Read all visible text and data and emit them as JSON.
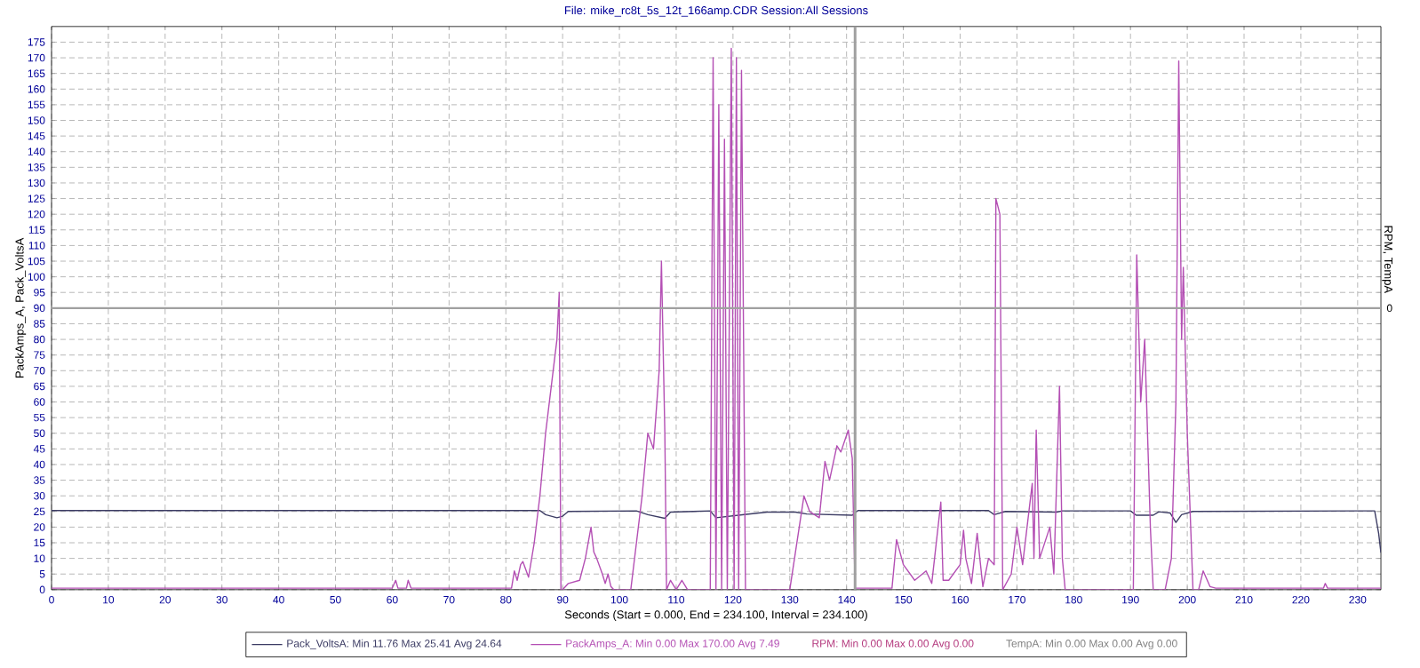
{
  "chart_data": {
    "type": "line",
    "title": "File: mike_rc8t_5s_12t_166amp.CDR   Session:All Sessions",
    "xlabel": "Seconds (Start = 0.000,  End = 234.100,  Interval =  234.100)",
    "ylabel": "PackAmps_A, Pack_VoltsA",
    "y2label": "RPM, TempA",
    "annotations": [
      "RPM:  Min 0.00   Max 0.00   Avg 0.00",
      "TempA:  Min 0.00   Max 0.00   Avg 0.00",
      {
        "text": "0",
        "x": 234.1,
        "y": 90
      }
    ],
    "xlim": [
      0,
      234.1
    ],
    "ylim": [
      0,
      180
    ],
    "xticks": [
      0,
      10,
      20,
      30,
      40,
      50,
      60,
      70,
      80,
      90,
      100,
      110,
      120,
      130,
      140,
      150,
      160,
      170,
      180,
      190,
      200,
      210,
      220,
      230
    ],
    "yticks": [
      0,
      5,
      10,
      15,
      20,
      25,
      30,
      35,
      40,
      45,
      50,
      55,
      60,
      65,
      70,
      75,
      80,
      85,
      90,
      95,
      100,
      105,
      110,
      115,
      120,
      125,
      130,
      135,
      140,
      145,
      150,
      155,
      160,
      165,
      170,
      175
    ],
    "grid": true,
    "legend": "bottom",
    "marker": "none",
    "line_style": "solid",
    "ref_lines": [
      {
        "axis": "x",
        "value": 141.5,
        "color": "#a0a0a0"
      },
      {
        "axis": "y",
        "value": 90,
        "color": "#a0a0a0"
      }
    ],
    "series": [
      {
        "name": "Pack_VoltsA:  Min 11.76   Max 25.41   Avg 24.64",
        "color": "#3c3c64",
        "x": [
          0,
          86,
          87,
          89,
          90,
          91,
          103,
          105,
          108,
          109,
          113,
          116,
          117,
          122,
          126,
          131,
          133,
          141,
          142,
          165,
          166,
          168,
          177,
          178,
          190,
          191,
          194,
          195,
          197,
          198,
          199,
          201,
          233,
          233.7,
          234.1
        ],
        "values": [
          25.3,
          25.3,
          24,
          23,
          23.5,
          25,
          25.2,
          24,
          22.8,
          24.8,
          25,
          25.2,
          23,
          24,
          24.8,
          24.8,
          24.2,
          23.8,
          25.3,
          25.3,
          24,
          25,
          24.8,
          25.2,
          25.2,
          23.8,
          23.8,
          24.9,
          24.5,
          21.5,
          24,
          25,
          25.2,
          18,
          11.8
        ]
      },
      {
        "name": "PackAmps_A:  Min 0.00   Max 170.00   Avg 7.49",
        "color": "#b44fb4",
        "x": [
          0,
          60,
          60.6,
          61,
          62.5,
          62.8,
          63.3,
          81,
          81.5,
          82,
          82.6,
          83,
          84,
          85,
          86,
          87,
          88,
          89,
          89.4,
          89.7,
          90,
          91,
          93,
          94,
          95,
          95.5,
          96,
          97,
          97.5,
          98,
          98.5,
          99,
          102,
          103,
          104,
          105,
          106,
          107,
          107.4,
          108,
          108.3,
          109,
          110,
          111,
          112,
          116,
          116.5,
          117,
          117.5,
          118,
          118.5,
          119,
          119.7,
          120.2,
          120.6,
          121,
          121.5,
          122.2,
          123,
          130,
          131,
          132.5,
          133.5,
          135.2,
          136.2,
          137,
          138.3,
          139,
          140.3,
          141,
          141.5,
          148,
          148.8,
          150,
          152,
          154,
          155,
          156.6,
          157,
          158,
          160,
          160.6,
          161,
          162,
          163,
          164,
          165,
          166,
          166.3,
          167,
          167.5,
          169,
          170,
          171,
          172.7,
          173,
          173.4,
          174,
          175.8,
          176.5,
          177.5,
          178,
          178.5,
          190.5,
          191.1,
          191.8,
          192.5,
          193.5,
          194,
          196.1,
          197.2,
          198,
          198.5,
          199,
          199.3,
          200,
          201,
          202,
          202.8,
          204,
          205,
          224,
          224.3,
          224.7,
          234.1
        ],
        "values": [
          0.5,
          0.5,
          3,
          0.5,
          0.5,
          3,
          0.5,
          0.5,
          6,
          3,
          8,
          9,
          4,
          15,
          30,
          50,
          65,
          80,
          95,
          0,
          0,
          2,
          3,
          10,
          20,
          12,
          10,
          5,
          2,
          5,
          1,
          0,
          0,
          15,
          30,
          50,
          45,
          70,
          105,
          50,
          0,
          3,
          0,
          3,
          0,
          0,
          170,
          0,
          155,
          0,
          144,
          0,
          173,
          0,
          170,
          0,
          166,
          0,
          0,
          0,
          12,
          30,
          25,
          23,
          41,
          35,
          46,
          44,
          51,
          42,
          0.5,
          0.5,
          16,
          8,
          3,
          6,
          2,
          28,
          3,
          3,
          8,
          19,
          10,
          2,
          18,
          1,
          10,
          8,
          125,
          120,
          0,
          5,
          20,
          8,
          34,
          10,
          51,
          10,
          20,
          5,
          65,
          10,
          0,
          0,
          107,
          60,
          80,
          20,
          0,
          0,
          10,
          60,
          169,
          80,
          103,
          50,
          0,
          0,
          6,
          1,
          0.5,
          0.5,
          2,
          0.5,
          0.5
        ]
      }
    ]
  }
}
